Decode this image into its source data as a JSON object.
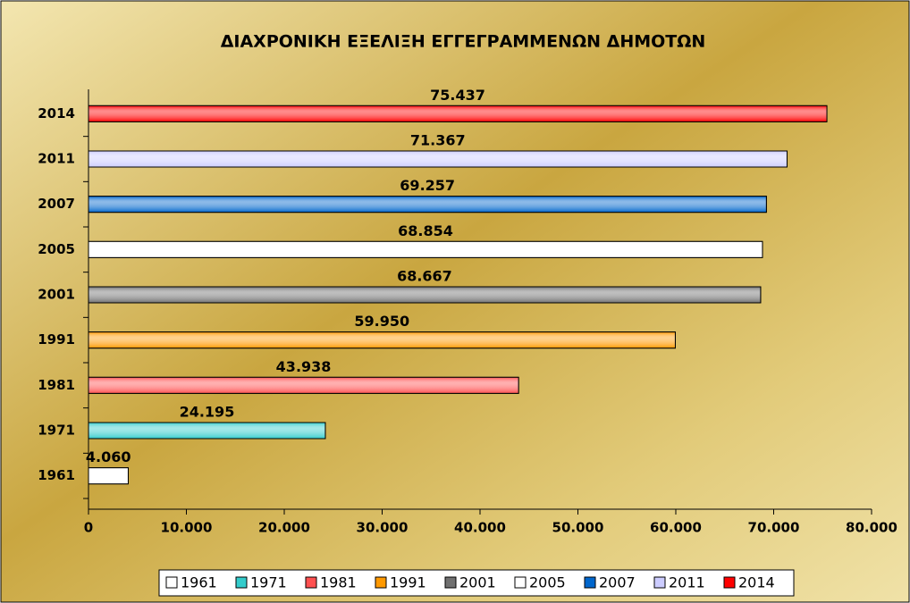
{
  "chart_data": {
    "type": "bar",
    "orientation": "horizontal",
    "title": "ΔΙΑΧΡΟΝΙΚΗ ΕΞΕΛΙΞΗ ΕΓΓΕΓΡΑΜΜΕΝΩΝ ΔΗΜΟΤΩΝ",
    "categories": [
      "1961",
      "1971",
      "1981",
      "1991",
      "2001",
      "2005",
      "2007",
      "2011",
      "2014"
    ],
    "values": [
      4060,
      24195,
      43938,
      59950,
      68667,
      68854,
      69257,
      71367,
      75437
    ],
    "value_labels": [
      "4.060",
      "24.195",
      "43.938",
      "59.950",
      "68.667",
      "68.854",
      "69.257",
      "71.367",
      "75.437"
    ],
    "colors": [
      "#ffffff",
      "#33cccc",
      "#ff5050",
      "#ff9900",
      "#707070",
      "#ffffff",
      "#0066cc",
      "#ccccff",
      "#ff0000"
    ],
    "xlim": [
      0,
      80000
    ],
    "xticks": [
      0,
      {
        "value": 10000,
        "label": "10.000"
      },
      {
        "value": 20000,
        "label": "20.000"
      },
      {
        "value": 30000,
        "label": "30.000"
      },
      {
        "value": 40000,
        "label": "40.000"
      },
      {
        "value": 50000,
        "label": "50.000"
      },
      {
        "value": 60000,
        "label": "60.000"
      },
      {
        "value": 70000,
        "label": "70.000"
      },
      {
        "value": 80000,
        "label": "80.000"
      }
    ],
    "legend": "bottom"
  }
}
